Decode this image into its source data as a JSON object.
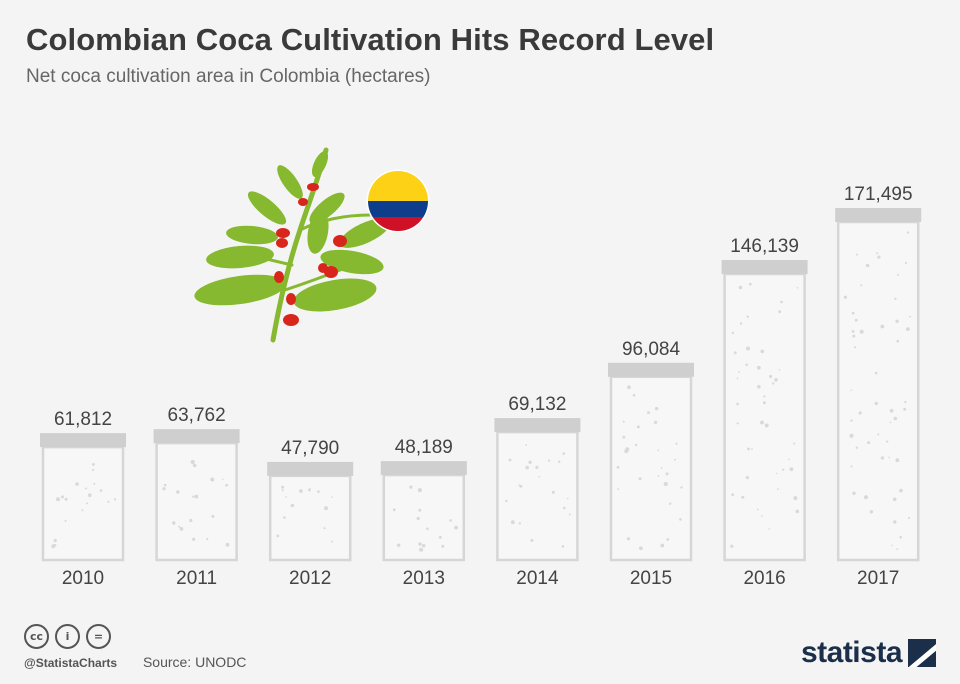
{
  "header": {
    "title": "Colombian Coca Cultivation Hits Record Level",
    "subtitle": "Net coca cultivation area in Colombia (hectares)"
  },
  "chart_data": {
    "type": "bar",
    "title": "Colombian Coca Cultivation Hits Record Level",
    "subtitle": "Net coca cultivation area in Colombia (hectares)",
    "categories": [
      "2010",
      "2011",
      "2012",
      "2013",
      "2014",
      "2015",
      "2016",
      "2017"
    ],
    "values": [
      61812,
      63762,
      47790,
      48189,
      69132,
      96084,
      146139,
      171495
    ],
    "value_labels": [
      "61,812",
      "63,762",
      "47,790",
      "48,189",
      "69,132",
      "96,084",
      "146,139",
      "171,495"
    ],
    "xlabel": "",
    "ylabel": "",
    "ylim": [
      0,
      171495
    ],
    "grid": false
  },
  "footer": {
    "license_icons": [
      "cc-icon",
      "attribution-icon",
      "no-derivatives-icon"
    ],
    "license_labels": [
      "cc",
      "i",
      "="
    ],
    "handle": "@StatistaCharts",
    "source": "Source: UNODC",
    "brand": "statista"
  },
  "colors": {
    "bar_fill": "#f7f7f7",
    "bar_border": "#d6d6d6",
    "bar_cap": "#cfcfcf",
    "dots": "#d9d9d9",
    "leaf": "#86b92f",
    "berry": "#d8261c",
    "flag_yellow": "#fcd116",
    "flag_blue": "#0e3d8c",
    "flag_red": "#ce1126",
    "brand": "#1b2f4a"
  }
}
